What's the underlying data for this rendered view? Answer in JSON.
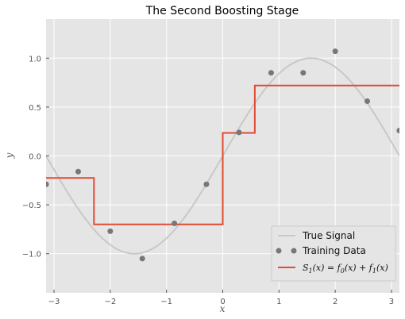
{
  "chart_data": {
    "type": "line",
    "title": "The Second Boosting Stage",
    "xlabel": "x",
    "ylabel": "y",
    "xlim": [
      -3.14159,
      3.14159
    ],
    "ylim": [
      -1.4,
      1.4
    ],
    "xticks": [
      -3,
      -2,
      -1,
      0,
      1,
      2,
      3
    ],
    "xtick_labels": [
      "−3",
      "−2",
      "−1",
      "0",
      "1",
      "2",
      "3"
    ],
    "yticks": [
      -1.0,
      -0.5,
      0.0,
      0.5,
      1.0
    ],
    "ytick_labels": [
      "−1.0",
      "−0.5",
      "0.0",
      "0.5",
      "1.0"
    ],
    "grid": true,
    "legend_position": "bottom-right",
    "colors": {
      "plot_bg": "#e5e5e5",
      "grid": "#ffffff",
      "true_signal": "#c8c8c8",
      "training": "#777777",
      "stage": "#e24a33"
    },
    "series": [
      {
        "name": "True Signal",
        "kind": "function",
        "function": "sin",
        "x_range": [
          -3.14159,
          3.14159
        ]
      },
      {
        "name": "Training Data",
        "kind": "scatter",
        "x": [
          -3.14,
          -2.57,
          -2.0,
          -1.43,
          -0.86,
          -0.29,
          0.29,
          0.86,
          1.43,
          2.0,
          2.57,
          3.14
        ],
        "y": [
          -0.29,
          -0.16,
          -0.77,
          -1.05,
          -0.69,
          -0.29,
          0.24,
          0.85,
          0.85,
          1.07,
          0.56,
          0.26
        ]
      },
      {
        "name": "S_1(x) = f_0(x) + f_1(x)",
        "kind": "step",
        "x": [
          -3.14159,
          -2.29,
          -2.29,
          0.0,
          0.0,
          0.57,
          0.57,
          3.14159
        ],
        "y": [
          -0.225,
          -0.225,
          -0.7,
          -0.7,
          0.235,
          0.235,
          0.72,
          0.72
        ]
      }
    ],
    "legend": {
      "entries": [
        "True Signal",
        "Training Data"
      ],
      "math_entry_parts": [
        "S",
        "1",
        "(x) = f",
        "0",
        "(x) + f",
        "1",
        "(x)"
      ]
    }
  }
}
